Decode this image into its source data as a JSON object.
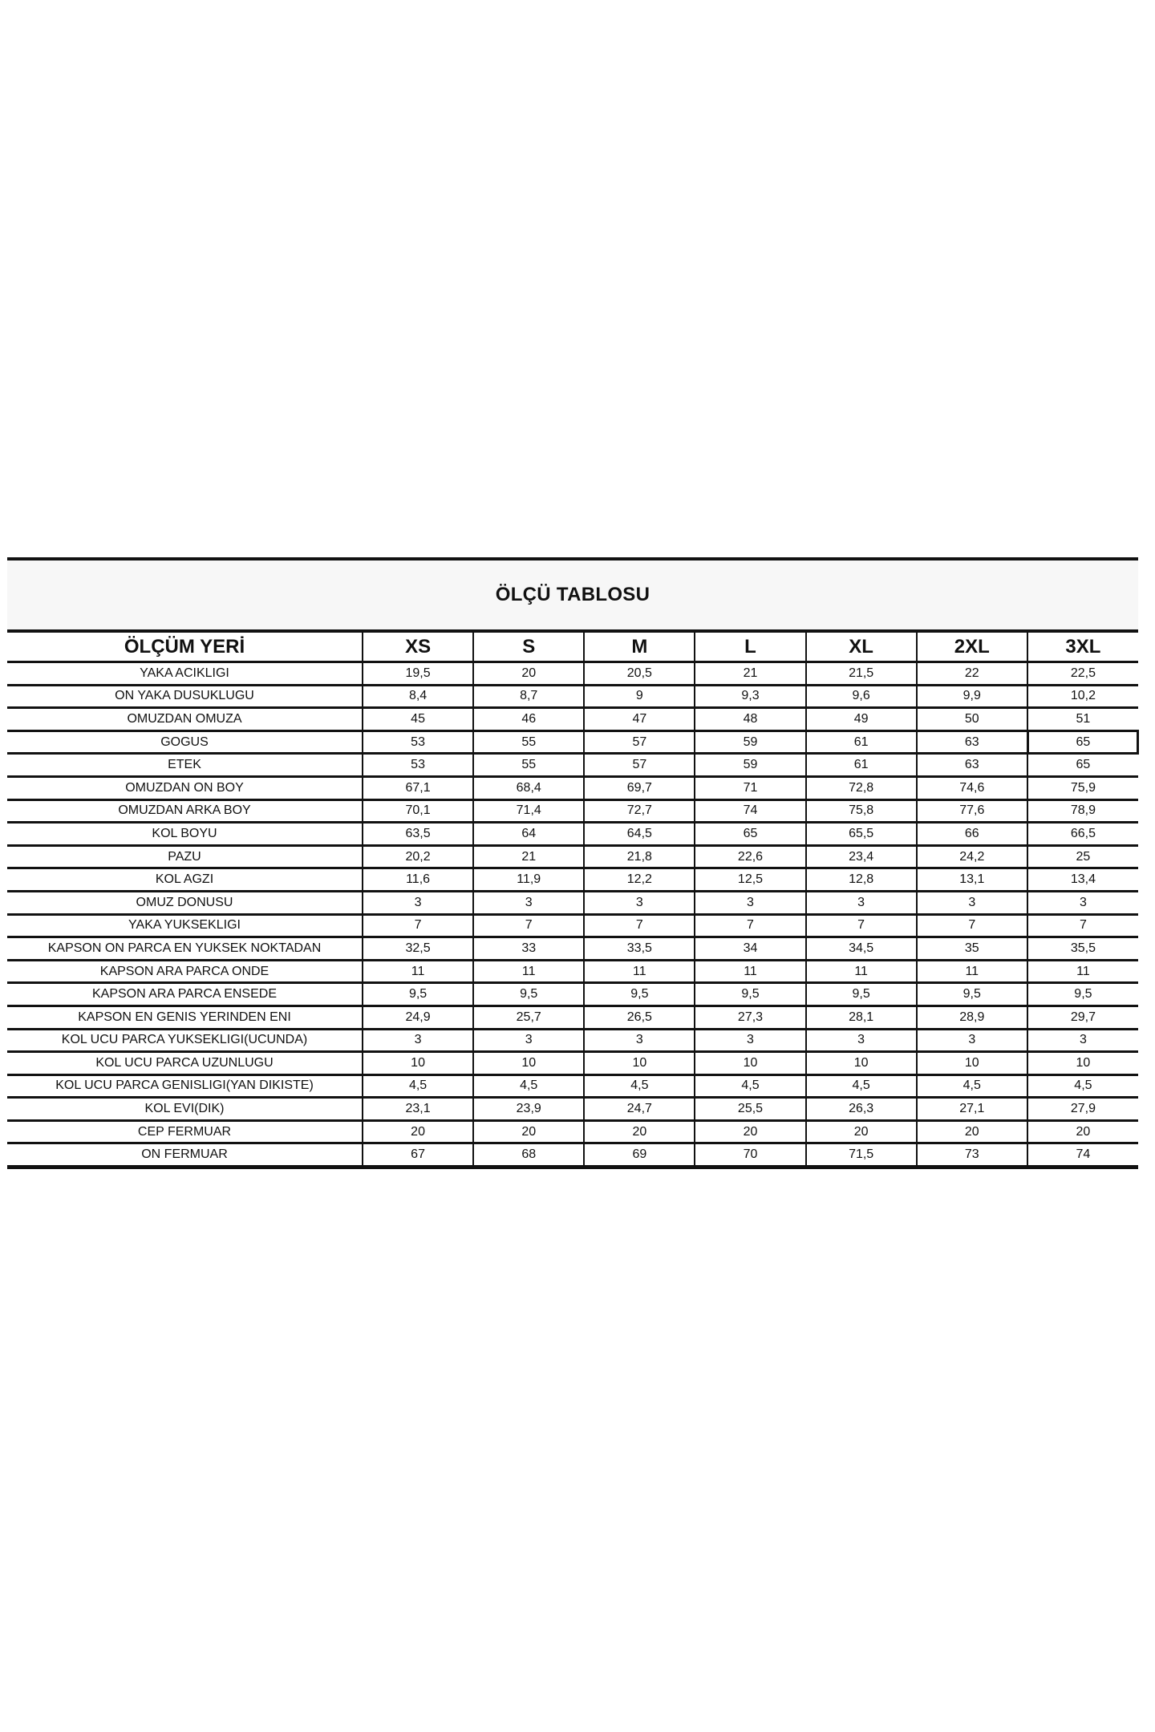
{
  "title": "ÖLÇÜ TABLOSU",
  "header": [
    "ÖLÇÜM YERİ",
    "XS",
    "S",
    "M",
    "L",
    "XL",
    "2XL",
    "3XL"
  ],
  "rows": [
    [
      "YAKA ACIKLIGI",
      "19,5",
      "20",
      "20,5",
      "21",
      "21,5",
      "22",
      "22,5"
    ],
    [
      "ON YAKA DUSUKLUGU",
      "8,4",
      "8,7",
      "9",
      "9,3",
      "9,6",
      "9,9",
      "10,2"
    ],
    [
      "OMUZDAN OMUZA",
      "45",
      "46",
      "47",
      "48",
      "49",
      "50",
      "51"
    ],
    [
      "GOGUS",
      "53",
      "55",
      "57",
      "59",
      "61",
      "63",
      "65"
    ],
    [
      "ETEK",
      "53",
      "55",
      "57",
      "59",
      "61",
      "63",
      "65"
    ],
    [
      "OMUZDAN ON BOY",
      "67,1",
      "68,4",
      "69,7",
      "71",
      "72,8",
      "74,6",
      "75,9"
    ],
    [
      "OMUZDAN ARKA BOY",
      "70,1",
      "71,4",
      "72,7",
      "74",
      "75,8",
      "77,6",
      "78,9"
    ],
    [
      "KOL BOYU",
      "63,5",
      "64",
      "64,5",
      "65",
      "65,5",
      "66",
      "66,5"
    ],
    [
      "PAZU",
      "20,2",
      "21",
      "21,8",
      "22,6",
      "23,4",
      "24,2",
      "25"
    ],
    [
      "KOL AGZI",
      "11,6",
      "11,9",
      "12,2",
      "12,5",
      "12,8",
      "13,1",
      "13,4"
    ],
    [
      "OMUZ DONUSU",
      "3",
      "3",
      "3",
      "3",
      "3",
      "3",
      "3"
    ],
    [
      "YAKA YUKSEKLIGI",
      "7",
      "7",
      "7",
      "7",
      "7",
      "7",
      "7"
    ],
    [
      "KAPSON ON PARCA EN YUKSEK NOKTADAN",
      "32,5",
      "33",
      "33,5",
      "34",
      "34,5",
      "35",
      "35,5"
    ],
    [
      "KAPSON ARA PARCA ONDE",
      "11",
      "11",
      "11",
      "11",
      "11",
      "11",
      "11"
    ],
    [
      "KAPSON ARA PARCA ENSEDE",
      "9,5",
      "9,5",
      "9,5",
      "9,5",
      "9,5",
      "9,5",
      "9,5"
    ],
    [
      "KAPSON EN GENIS YERINDEN ENI",
      "24,9",
      "25,7",
      "26,5",
      "27,3",
      "28,1",
      "28,9",
      "29,7"
    ],
    [
      "KOL UCU PARCA YUKSEKLIGI(UCUNDA)",
      "3",
      "3",
      "3",
      "3",
      "3",
      "3",
      "3"
    ],
    [
      "KOL UCU PARCA UZUNLUGU",
      "10",
      "10",
      "10",
      "10",
      "10",
      "10",
      "10"
    ],
    [
      "KOL UCU PARCA GENISLIGI(YAN DIKISTE)",
      "4,5",
      "4,5",
      "4,5",
      "4,5",
      "4,5",
      "4,5",
      "4,5"
    ],
    [
      "KOL EVI(DIK)",
      "23,1",
      "23,9",
      "24,7",
      "25,5",
      "26,3",
      "27,1",
      "27,9"
    ],
    [
      "CEP FERMUAR",
      "20",
      "20",
      "20",
      "20",
      "20",
      "20",
      "20"
    ],
    [
      "ON FERMUAR",
      "67",
      "68",
      "69",
      "70",
      "71,5",
      "73",
      "74"
    ]
  ]
}
